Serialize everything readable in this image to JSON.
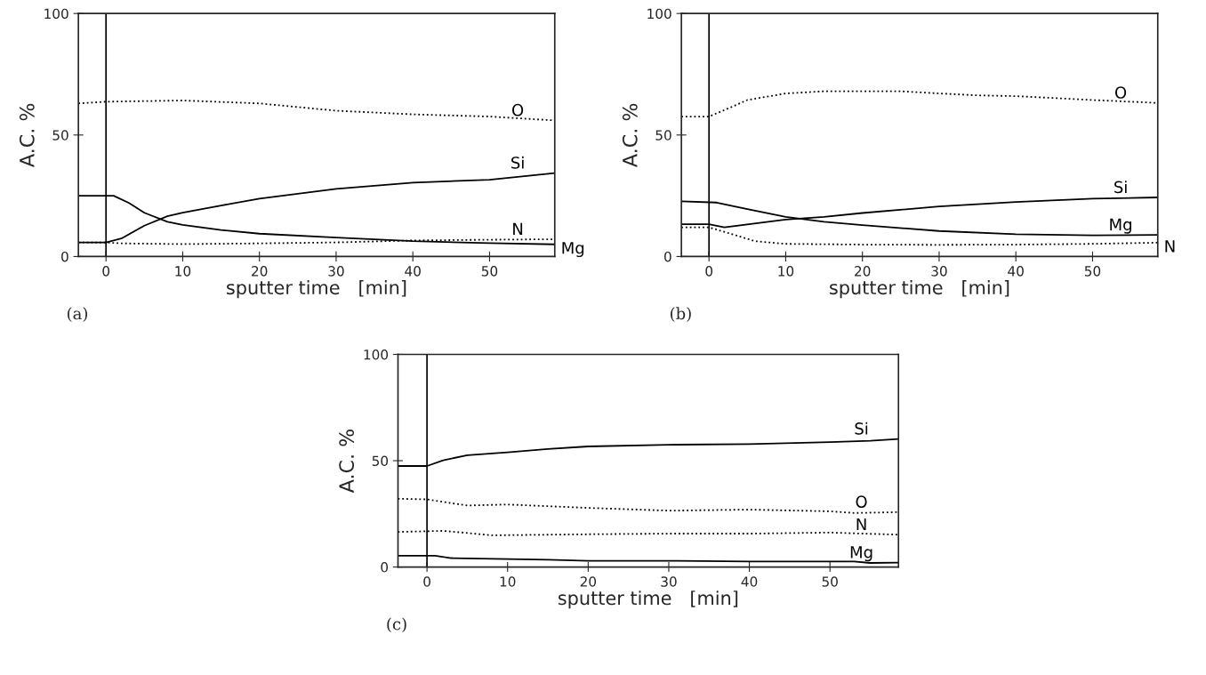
{
  "chart_data": [
    {
      "type": "line",
      "title": "(a)",
      "xlabel": "sputter time   [min]",
      "ylabel": "A.C. %",
      "xlim": [
        -3.6,
        58.5
      ],
      "ylim": [
        0,
        100
      ],
      "xticks": [
        0,
        10,
        20,
        30,
        40,
        50
      ],
      "yticks": [
        0,
        50,
        100
      ],
      "grid": false,
      "legend": false,
      "ref_lines": [
        {
          "axis": "x",
          "value": 0
        }
      ],
      "series": [
        {
          "name": "O",
          "color": "#000000",
          "line_style": "dotted",
          "x": [
            -3.6,
            0,
            10,
            20,
            30,
            40,
            50,
            58.5
          ],
          "values": [
            63,
            63.7,
            64.2,
            63,
            60,
            58.5,
            57.6,
            56
          ]
        },
        {
          "name": "Si",
          "color": "#000000",
          "line_style": "solid",
          "x": [
            -3.6,
            0,
            2,
            5,
            8,
            10,
            15,
            20,
            30,
            40,
            50,
            58.5
          ],
          "values": [
            5.8,
            5.8,
            7.4,
            12.7,
            16.6,
            18,
            21,
            23.8,
            27.8,
            30.4,
            31.6,
            34.3
          ]
        },
        {
          "name": "N",
          "color": "#000000",
          "line_style": "dotted",
          "x": [
            -3.6,
            0,
            2,
            10,
            20,
            30,
            40,
            50,
            58.5
          ],
          "values": [
            5.8,
            5.8,
            5.4,
            5.1,
            5.4,
            5.8,
            6.6,
            6.9,
            7.1
          ]
        },
        {
          "name": "Mg",
          "color": "#000000",
          "line_style": "solid",
          "x": [
            -3.6,
            1,
            3,
            5,
            8,
            10,
            15,
            20,
            30,
            40,
            50,
            58.5
          ],
          "values": [
            25,
            25,
            22,
            18,
            14.3,
            13,
            10.9,
            9.4,
            7.8,
            6.3,
            5.5,
            5
          ]
        }
      ]
    },
    {
      "type": "line",
      "title": "(b)",
      "xlabel": "sputter time   [min]",
      "ylabel": "A.C. %",
      "xlim": [
        -3.6,
        58.5
      ],
      "ylim": [
        0,
        100
      ],
      "xticks": [
        0,
        10,
        20,
        30,
        40,
        50
      ],
      "yticks": [
        0,
        50,
        100
      ],
      "grid": false,
      "legend": false,
      "ref_lines": [
        {
          "axis": "x",
          "value": 0
        }
      ],
      "series": [
        {
          "name": "O",
          "color": "#000000",
          "line_style": "dotted",
          "x": [
            -3.6,
            0,
            3,
            5,
            10,
            15,
            20,
            25,
            30,
            35,
            40,
            50,
            58.5
          ],
          "values": [
            57.6,
            57.6,
            61.6,
            64.4,
            67.1,
            68,
            68,
            68,
            67.1,
            66.3,
            66,
            64.4,
            63.2
          ]
        },
        {
          "name": "Si",
          "color": "#000000",
          "line_style": "solid",
          "x": [
            -3.6,
            0,
            2,
            10,
            15,
            20,
            30,
            40,
            50,
            58.5
          ],
          "values": [
            13.3,
            13.3,
            12,
            15.2,
            16.3,
            17.9,
            20.6,
            22.4,
            23.8,
            24.3
          ]
        },
        {
          "name": "Mg",
          "color": "#000000",
          "line_style": "solid",
          "x": [
            -3.6,
            1,
            5,
            10,
            15,
            20,
            30,
            40,
            50,
            58.5
          ],
          "values": [
            22.7,
            22.2,
            19.5,
            16.3,
            14.3,
            12.9,
            10.5,
            9.2,
            8.7,
            8.9
          ]
        },
        {
          "name": "N",
          "color": "#000000",
          "line_style": "dotted",
          "x": [
            -3.6,
            0,
            3,
            6,
            10,
            20,
            30,
            40,
            50,
            58.5
          ],
          "values": [
            12,
            12,
            9.2,
            6.3,
            5.2,
            4.9,
            4.8,
            4.9,
            5.2,
            5.7
          ]
        }
      ]
    },
    {
      "type": "line",
      "title": "(c)",
      "xlabel": "sputter time   [min]",
      "ylabel": "A.C. %",
      "xlim": [
        -3.6,
        58.5
      ],
      "ylim": [
        0,
        100
      ],
      "xticks": [
        0,
        10,
        20,
        30,
        40,
        50
      ],
      "yticks": [
        0,
        50,
        100
      ],
      "grid": false,
      "legend": false,
      "ref_lines": [
        {
          "axis": "x",
          "value": 0
        }
      ],
      "series": [
        {
          "name": "Si",
          "color": "#000000",
          "line_style": "solid",
          "x": [
            -3.6,
            0,
            2,
            5,
            10,
            15,
            20,
            30,
            40,
            50,
            55,
            58.5
          ],
          "values": [
            47.5,
            47.5,
            50.2,
            52.6,
            53.9,
            55.5,
            56.7,
            57.5,
            57.8,
            58.7,
            59.4,
            60.2
          ]
        },
        {
          "name": "O",
          "color": "#000000",
          "line_style": "dotted",
          "x": [
            -3.6,
            0,
            5,
            10,
            20,
            30,
            40,
            50,
            53,
            58.5
          ],
          "values": [
            32.1,
            31.8,
            28.9,
            29.4,
            27.8,
            26.5,
            27,
            26.2,
            25.4,
            25.8
          ]
        },
        {
          "name": "N",
          "color": "#000000",
          "line_style": "dotted",
          "x": [
            -3.6,
            2,
            5,
            8,
            20,
            30,
            40,
            50,
            58.5
          ],
          "values": [
            16.5,
            17,
            16,
            14.9,
            15.4,
            15.7,
            15.7,
            16.2,
            15.2
          ]
        },
        {
          "name": "Mg",
          "color": "#000000",
          "line_style": "solid",
          "x": [
            -3.6,
            1,
            3,
            10,
            15,
            20,
            30,
            40,
            53,
            55,
            58.5
          ],
          "values": [
            5.3,
            5.3,
            4.2,
            3.7,
            3.4,
            2.9,
            2.9,
            2.6,
            2.6,
            1.9,
            2.1
          ]
        }
      ]
    }
  ]
}
